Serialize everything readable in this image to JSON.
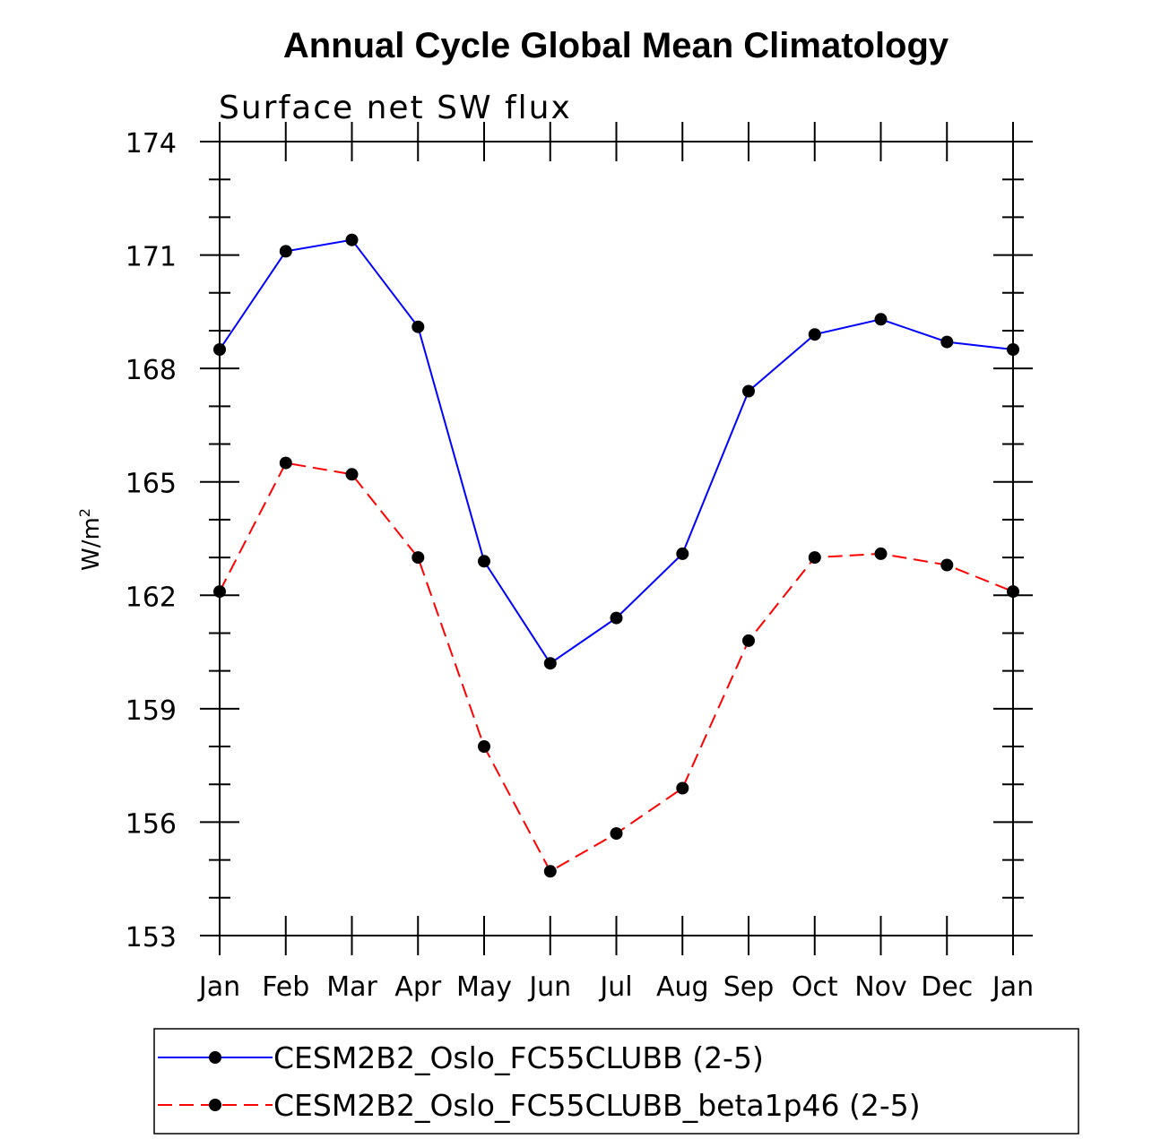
{
  "chart_data": {
    "type": "line",
    "title": "Annual Cycle Global Mean Climatology",
    "subtitle": "Surface net SW flux",
    "xlabel": "",
    "ylabel": "W/m",
    "ylabel_superscript": "2",
    "ylim": [
      153,
      174
    ],
    "yticks": [
      153,
      156,
      159,
      162,
      165,
      168,
      171,
      174
    ],
    "ytick_labels": [
      "153",
      "156",
      "159",
      "162",
      "165",
      "168",
      "171",
      "174"
    ],
    "categories": [
      "Jan",
      "Feb",
      "Mar",
      "Apr",
      "May",
      "Jun",
      "Jul",
      "Aug",
      "Sep",
      "Oct",
      "Nov",
      "Dec",
      "Jan"
    ],
    "grid": false,
    "legend_position": "bottom",
    "series": [
      {
        "name": "CESM2B2_Oslo_FC55CLUBB (2-5)",
        "color": "#0000ff",
        "dash": "solid",
        "values": [
          168.5,
          171.1,
          171.4,
          169.1,
          162.9,
          160.2,
          161.4,
          163.1,
          167.4,
          168.9,
          169.3,
          168.7,
          168.5
        ]
      },
      {
        "name": "CESM2B2_Oslo_FC55CLUBB_beta1p46 (2-5)",
        "color": "#ff0000",
        "dash": "dashed",
        "values": [
          162.1,
          165.5,
          165.2,
          163.0,
          158.0,
          154.7,
          155.7,
          156.9,
          160.8,
          163.0,
          163.1,
          162.8,
          162.1
        ]
      }
    ]
  }
}
